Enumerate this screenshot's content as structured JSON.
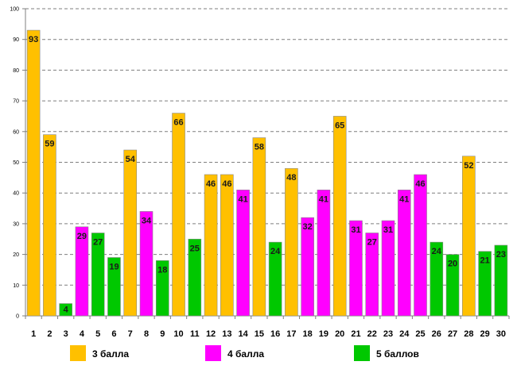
{
  "chart_data": {
    "type": "bar",
    "ylim": [
      0,
      100
    ],
    "ytick_step": 10,
    "grid": true,
    "categories": [
      "1",
      "2",
      "3",
      "4",
      "5",
      "6",
      "7",
      "8",
      "9",
      "10",
      "11",
      "12",
      "13",
      "14",
      "15",
      "16",
      "17",
      "18",
      "19",
      "20",
      "21",
      "22",
      "23",
      "24",
      "25",
      "26",
      "27",
      "28",
      "29",
      "30"
    ],
    "values": [
      93,
      59,
      4,
      29,
      27,
      19,
      54,
      34,
      18,
      66,
      25,
      46,
      46,
      41,
      58,
      24,
      48,
      32,
      41,
      65,
      31,
      27,
      31,
      41,
      46,
      24,
      20,
      52,
      21,
      23
    ],
    "groups": [
      "3",
      "3",
      "5",
      "4",
      "5",
      "5",
      "3",
      "4",
      "5",
      "3",
      "5",
      "3",
      "3",
      "4",
      "3",
      "5",
      "3",
      "4",
      "4",
      "3",
      "4",
      "4",
      "4",
      "4",
      "4",
      "5",
      "5",
      "3",
      "5",
      "5"
    ],
    "series": [
      {
        "key": "3",
        "name": "3 балла",
        "color": "#FFC000"
      },
      {
        "key": "4",
        "name": "4 балла",
        "color": "#FF00FF"
      },
      {
        "key": "5",
        "name": "5 баллов",
        "color": "#00C800"
      }
    ],
    "legend_position": "bottom"
  }
}
